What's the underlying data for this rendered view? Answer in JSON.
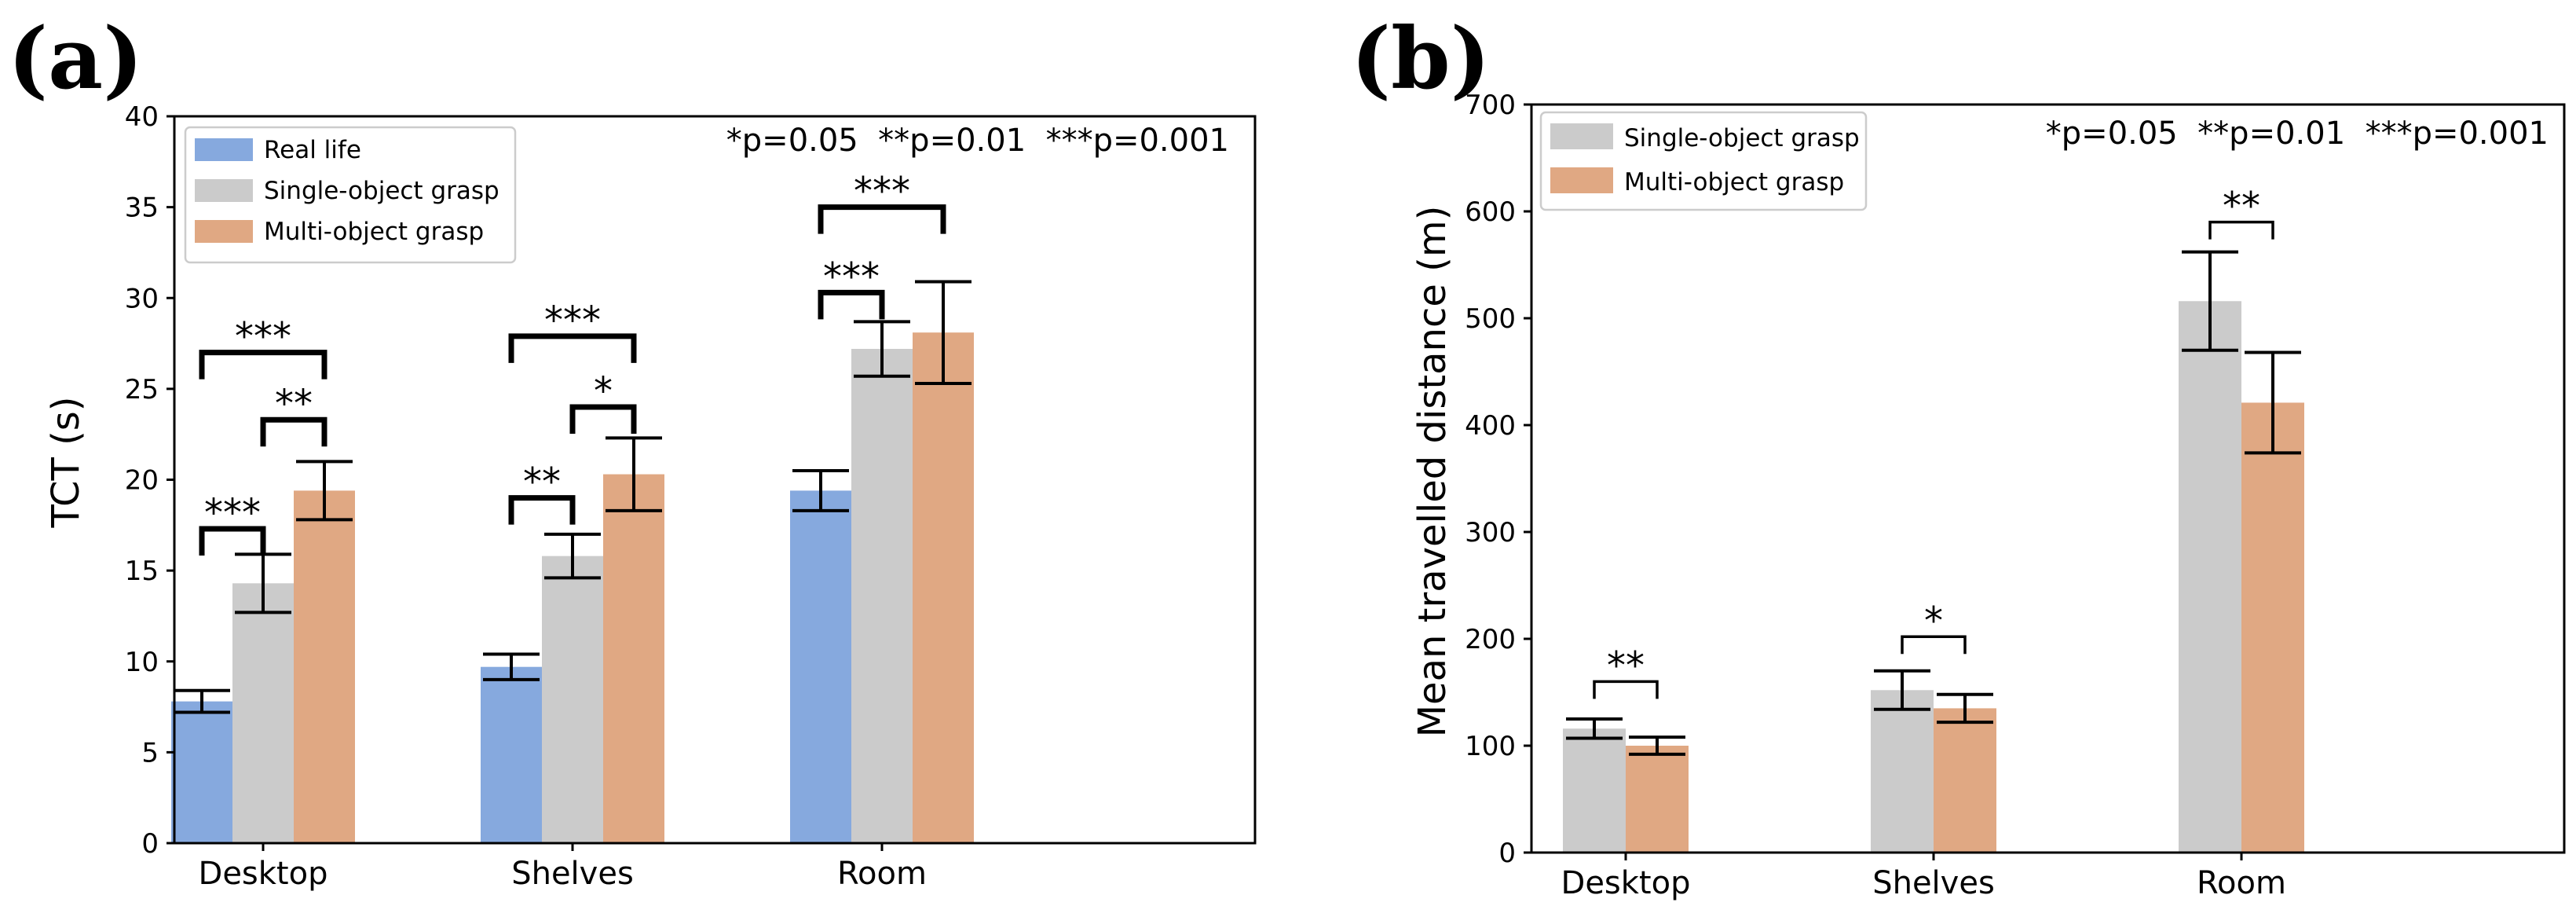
{
  "panel_labels": [
    "(a)",
    "(b)"
  ],
  "chart_data": [
    {
      "type": "bar",
      "categories": [
        "Desktop",
        "Shelves",
        "Room"
      ],
      "xlabel": "",
      "ylabel": "TCT (s)",
      "ylim": [
        0,
        40
      ],
      "yticks": [
        0,
        5,
        10,
        15,
        20,
        25,
        30,
        35,
        40
      ],
      "grid": false,
      "legend_position": "top-left",
      "significance_note": "*p=0.05  **p=0.01  ***p=0.001",
      "series": [
        {
          "name": "Real life",
          "color": "#86a9de",
          "values": [
            7.8,
            9.7,
            19.4
          ],
          "errors": [
            0.6,
            0.7,
            1.1
          ]
        },
        {
          "name": "Single-object grasp",
          "color": "#cbcbcb",
          "values": [
            14.3,
            15.8,
            27.2
          ],
          "errors": [
            1.6,
            1.2,
            1.5
          ]
        },
        {
          "name": "Multi-object grasp",
          "color": "#e0a883",
          "values": [
            19.4,
            20.3,
            28.1
          ],
          "errors": [
            1.6,
            2.0,
            2.8
          ]
        }
      ],
      "significance": [
        {
          "category": 0,
          "from": 0,
          "to": 1,
          "label": "***",
          "y": 17.3
        },
        {
          "category": 0,
          "from": 1,
          "to": 2,
          "label": "**",
          "y": 23.3
        },
        {
          "category": 0,
          "from": 0,
          "to": 2,
          "label": "***",
          "y": 27.0
        },
        {
          "category": 1,
          "from": 0,
          "to": 1,
          "label": "**",
          "y": 19.0
        },
        {
          "category": 1,
          "from": 1,
          "to": 2,
          "label": "*",
          "y": 24.0
        },
        {
          "category": 1,
          "from": 0,
          "to": 2,
          "label": "***",
          "y": 27.9
        },
        {
          "category": 2,
          "from": 0,
          "to": 1,
          "label": "***",
          "y": 30.3
        },
        {
          "category": 2,
          "from": 0,
          "to": 2,
          "label": "***",
          "y": 35.0
        }
      ]
    },
    {
      "type": "bar",
      "categories": [
        "Desktop",
        "Shelves",
        "Room"
      ],
      "xlabel": "",
      "ylabel": "Mean travelled distance (m)",
      "ylim": [
        0,
        700
      ],
      "yticks": [
        0,
        100,
        200,
        300,
        400,
        500,
        600,
        700
      ],
      "grid": false,
      "legend_position": "top-left",
      "significance_note": "*p=0.05  **p=0.01  ***p=0.001",
      "series": [
        {
          "name": "Single-object grasp",
          "color": "#cbcbcb",
          "values": [
            116,
            152,
            516
          ],
          "errors": [
            9,
            18,
            46
          ]
        },
        {
          "name": "Multi-object grasp",
          "color": "#e0a883",
          "values": [
            100,
            135,
            421
          ],
          "errors": [
            8,
            13,
            47
          ]
        }
      ],
      "significance": [
        {
          "category": 0,
          "from": 0,
          "to": 1,
          "label": "**",
          "y": 160
        },
        {
          "category": 1,
          "from": 0,
          "to": 1,
          "label": "*",
          "y": 202
        },
        {
          "category": 2,
          "from": 0,
          "to": 1,
          "label": "**",
          "y": 590
        }
      ]
    }
  ]
}
